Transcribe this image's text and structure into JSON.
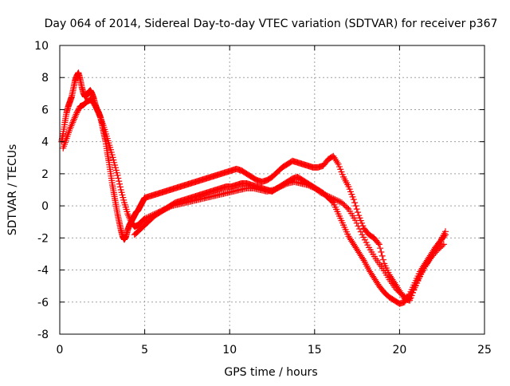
{
  "chart_data": {
    "type": "scatter",
    "title": "Day 064 of 2014, Sidereal Day-to-day VTEC variation (SDTVAR) for receiver p367",
    "xlabel": "GPS time / hours",
    "ylabel": "SDTVAR / TECUs",
    "xlim": [
      0,
      25
    ],
    "ylim": [
      -8,
      10
    ],
    "xticks": [
      0,
      5,
      10,
      15,
      20,
      25
    ],
    "yticks": [
      -8,
      -6,
      -4,
      -2,
      0,
      2,
      4,
      6,
      8,
      10
    ],
    "grid": true,
    "grid_style": "dotted",
    "marker": "plus",
    "color": "#ff0000",
    "series": [
      {
        "x": [
          0.1,
          0.2,
          0.3,
          0.4,
          0.5,
          0.6,
          0.7,
          0.8,
          0.9,
          1.0,
          1.1,
          1.2,
          1.3,
          1.4,
          1.5,
          1.6,
          1.7,
          1.8,
          1.9,
          2.0,
          2.1,
          2.2,
          2.3,
          2.4,
          2.5,
          2.6,
          2.7,
          2.8,
          2.9,
          3.0,
          3.1,
          3.2,
          3.3,
          3.4,
          3.5,
          3.6,
          3.7,
          3.8,
          3.9,
          4.0,
          4.1,
          4.2,
          4.3,
          4.4,
          4.5,
          4.6,
          4.7,
          4.8,
          4.9,
          5.0,
          5.3,
          5.6,
          5.9,
          6.2,
          6.5,
          6.8,
          7.1,
          7.4,
          7.7,
          8.0,
          8.3,
          8.6,
          8.9,
          9.2,
          9.5,
          9.8,
          10.1,
          10.4,
          10.7,
          11.0,
          11.3,
          11.6,
          11.9,
          12.2,
          12.5,
          12.8,
          13.1,
          13.4,
          13.7,
          14.0,
          14.3,
          14.6,
          14.9,
          15.2,
          15.5,
          15.8,
          16.1,
          16.4,
          16.7,
          17.0,
          17.3,
          17.6,
          17.9,
          18.2,
          18.5,
          18.8,
          19.1,
          19.4,
          19.7,
          20.0,
          20.3,
          20.6,
          20.9,
          21.2,
          21.5,
          21.8,
          22.1,
          22.4,
          22.7
        ],
        "y": [
          4.0,
          4.5,
          5.2,
          5.8,
          6.2,
          6.5,
          6.8,
          7.3,
          7.8,
          8.1,
          8.3,
          7.9,
          7.4,
          7.0,
          6.8,
          6.9,
          7.1,
          7.2,
          7.0,
          6.7,
          6.3,
          6.0,
          5.8,
          5.5,
          5.0,
          4.5,
          4.0,
          3.3,
          2.7,
          2.0,
          1.3,
          0.7,
          0.1,
          -0.5,
          -1.0,
          -1.5,
          -1.9,
          -2.1,
          -1.9,
          -1.5,
          -1.2,
          -1.0,
          -0.8,
          -0.6,
          -0.4,
          -0.3,
          -0.1,
          0.1,
          0.3,
          0.5,
          0.6,
          0.7,
          0.8,
          0.9,
          1.0,
          1.1,
          1.2,
          1.3,
          1.4,
          1.5,
          1.6,
          1.7,
          1.8,
          1.9,
          2.0,
          2.1,
          2.2,
          2.3,
          2.2,
          2.0,
          1.8,
          1.6,
          1.5,
          1.6,
          1.8,
          2.1,
          2.4,
          2.6,
          2.8,
          2.7,
          2.6,
          2.5,
          2.4,
          2.4,
          2.5,
          2.9,
          3.1,
          2.6,
          1.8,
          1.2,
          0.4,
          -0.6,
          -1.4,
          -1.8,
          -2.0,
          -2.4,
          -3.6,
          -4.3,
          -4.8,
          -5.3,
          -5.8,
          -5.9,
          -5.1,
          -4.4,
          -3.8,
          -3.3,
          -2.8,
          -2.2,
          -1.6
        ]
      },
      {
        "x": [
          0.2,
          0.4,
          0.6,
          0.8,
          1.0,
          1.2,
          1.4,
          1.6,
          1.8,
          2.0,
          2.2,
          2.4,
          2.6,
          2.8,
          3.0,
          3.2,
          3.4,
          3.6,
          3.8,
          4.0,
          4.2,
          4.4,
          4.6,
          4.8,
          5.0,
          5.4,
          5.8,
          6.2,
          6.6,
          7.0,
          7.4,
          7.8,
          8.2,
          8.6,
          9.0,
          9.4,
          9.8,
          10.2,
          10.6,
          11.0,
          11.4,
          11.8,
          12.2,
          12.6,
          13.0,
          13.4,
          13.8,
          14.2,
          14.6,
          15.0,
          15.4,
          15.8,
          16.2,
          16.6,
          17.0,
          17.4,
          17.8,
          18.2,
          18.6,
          19.0,
          19.4,
          19.8,
          20.2,
          20.6,
          21.0,
          21.4,
          21.8,
          22.2,
          22.6
        ],
        "y": [
          3.6,
          4.2,
          4.8,
          5.3,
          5.8,
          6.2,
          6.3,
          6.5,
          6.6,
          6.4,
          6.0,
          5.5,
          4.9,
          4.2,
          3.5,
          2.7,
          1.9,
          1.0,
          0.2,
          -0.5,
          -1.0,
          -1.3,
          -1.2,
          -1.0,
          -0.8,
          -0.6,
          -0.4,
          -0.2,
          0.0,
          0.1,
          0.2,
          0.3,
          0.4,
          0.5,
          0.6,
          0.7,
          0.8,
          0.9,
          1.0,
          1.1,
          1.1,
          1.0,
          0.9,
          1.0,
          1.2,
          1.4,
          1.5,
          1.4,
          1.3,
          1.1,
          0.8,
          0.6,
          0.4,
          0.2,
          -0.2,
          -0.9,
          -1.8,
          -2.6,
          -3.3,
          -3.9,
          -4.6,
          -5.2,
          -5.6,
          -5.8,
          -4.8,
          -3.9,
          -3.3,
          -2.8,
          -2.4
        ]
      },
      {
        "x": [
          4.4,
          4.7,
          5.0,
          5.3,
          5.6,
          5.9,
          6.2,
          6.5,
          6.8,
          7.1,
          7.4,
          7.7,
          8.0,
          8.3,
          8.6,
          8.9,
          9.2,
          9.5,
          9.8,
          10.1,
          10.4,
          10.7,
          11.0,
          11.3,
          11.6,
          11.9,
          12.2,
          12.5,
          12.8,
          13.1,
          13.4,
          13.7,
          14.0,
          14.3,
          14.6,
          14.9,
          15.2,
          15.5,
          15.8,
          16.1,
          16.4,
          16.7,
          17.0,
          17.3,
          17.6,
          17.9,
          18.2,
          18.5,
          18.8,
          19.1,
          19.4,
          19.7,
          20.0,
          20.3,
          20.6,
          20.9,
          21.2,
          21.5,
          21.8,
          22.1,
          22.4,
          22.7
        ],
        "y": [
          -1.8,
          -1.5,
          -1.2,
          -0.9,
          -0.6,
          -0.4,
          -0.2,
          0.0,
          0.2,
          0.3,
          0.4,
          0.5,
          0.6,
          0.7,
          0.8,
          0.9,
          1.0,
          1.1,
          1.2,
          1.2,
          1.3,
          1.4,
          1.4,
          1.3,
          1.2,
          1.1,
          1.0,
          0.9,
          1.1,
          1.3,
          1.5,
          1.7,
          1.8,
          1.6,
          1.4,
          1.2,
          1.0,
          0.8,
          0.5,
          0.2,
          -0.5,
          -1.2,
          -1.9,
          -2.4,
          -2.9,
          -3.4,
          -4.0,
          -4.5,
          -5.0,
          -5.4,
          -5.7,
          -5.9,
          -6.1,
          -6.0,
          -5.5,
          -4.8,
          -4.1,
          -3.6,
          -3.1,
          -2.6,
          -2.2,
          -1.8
        ]
      }
    ]
  }
}
